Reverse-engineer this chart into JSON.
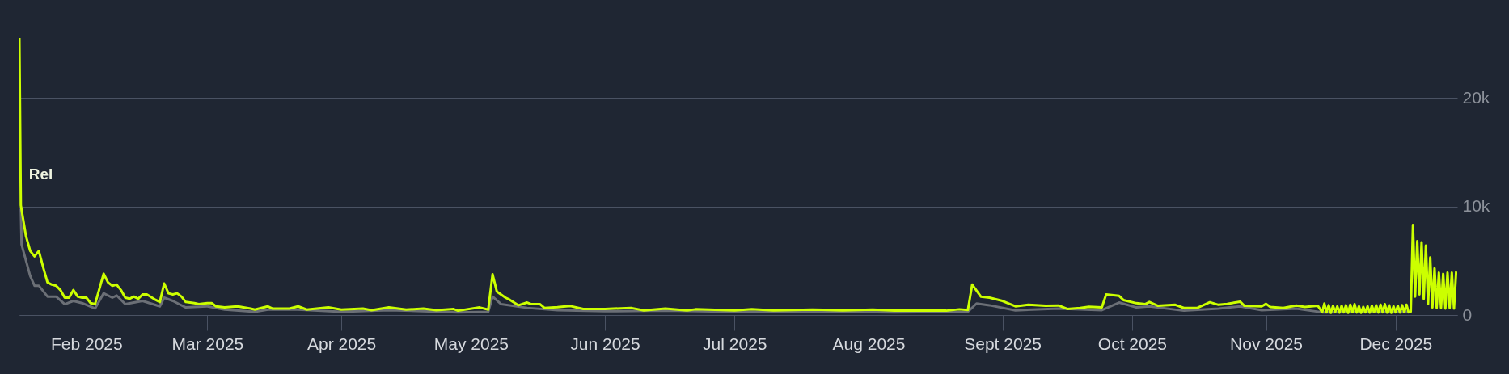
{
  "chart_data": {
    "type": "line",
    "xlim": [
      "2025-01-16T12:00",
      "2025-12-15T06:00"
    ],
    "xticks": [
      {
        "value": "2025-02-01",
        "label": "Feb 2025"
      },
      {
        "value": "2025-03-01",
        "label": "Mar 2025"
      },
      {
        "value": "2025-04-01",
        "label": "Apr 2025"
      },
      {
        "value": "2025-05-01",
        "label": "May 2025"
      },
      {
        "value": "2025-06-01",
        "label": "Jun 2025"
      },
      {
        "value": "2025-07-01",
        "label": "Jul 2025"
      },
      {
        "value": "2025-08-01",
        "label": "Aug 2025"
      },
      {
        "value": "2025-09-01",
        "label": "Sept 2025"
      },
      {
        "value": "2025-10-01",
        "label": "Oct 2025"
      },
      {
        "value": "2025-11-01",
        "label": "Nov 2025"
      },
      {
        "value": "2025-12-01",
        "label": "Dec 2025"
      }
    ],
    "ylim": [
      0,
      29000
    ],
    "yticks": [
      {
        "value": 0,
        "label": "0"
      },
      {
        "value": 10000,
        "label": "10k"
      },
      {
        "value": 20000,
        "label": "20k"
      }
    ],
    "grid": "y",
    "line_style": "solid",
    "annotations": [
      {
        "text": "Rel",
        "x": "2025-01-16T20:00",
        "y": 10100
      }
    ],
    "series": [
      {
        "color": "#6b6f76",
        "x": [
          "2025-01-16T20:00",
          "2025-01-17",
          "2025-01-19",
          "2025-01-20",
          "2025-01-21",
          "2025-01-23",
          "2025-01-25",
          "2025-01-27",
          "2025-01-29",
          "2025-01-31",
          "2025-02-03",
          "2025-02-05",
          "2025-02-07",
          "2025-02-08",
          "2025-02-10",
          "2025-02-14",
          "2025-02-18",
          "2025-02-19",
          "2025-02-21",
          "2025-02-24",
          "2025-03-01",
          "2025-03-05",
          "2025-03-12",
          "2025-03-15",
          "2025-03-22",
          "2025-04-01",
          "2025-04-12",
          "2025-04-28",
          "2025-05-05",
          "2025-05-06",
          "2025-05-08",
          "2025-05-14",
          "2025-05-21",
          "2025-06-01",
          "2025-06-15",
          "2025-07-01",
          "2025-07-19",
          "2025-08-07",
          "2025-08-24",
          "2025-08-26",
          "2025-08-29",
          "2025-09-04",
          "2025-09-14",
          "2025-09-24",
          "2025-09-28",
          "2025-10-02",
          "2025-10-05",
          "2025-10-13",
          "2025-10-21",
          "2025-10-26",
          "2025-10-31",
          "2025-11-08",
          "2025-11-14",
          "2025-11-28",
          "2025-12-04"
        ],
        "values": [
          9800,
          6500,
          3600,
          2700,
          2700,
          1700,
          1700,
          1000,
          1300,
          1100,
          600,
          2000,
          1600,
          1800,
          1000,
          1300,
          800,
          1600,
          1300,
          700,
          800,
          500,
          300,
          500,
          500,
          300,
          450,
          250,
          300,
          1700,
          1000,
          660,
          450,
          350,
          400,
          300,
          330,
          250,
          300,
          1060,
          900,
          430,
          600,
          450,
          1150,
          700,
          800,
          400,
          600,
          800,
          450,
          600,
          250,
          300,
          300
        ]
      },
      {
        "color": "#ccff00",
        "x": [
          "2025-01-16T12:00",
          "2025-01-16T20:00",
          "2025-01-18",
          "2025-01-19",
          "2025-01-20",
          "2025-01-21",
          "2025-01-22",
          "2025-01-23",
          "2025-01-24",
          "2025-01-25",
          "2025-01-26",
          "2025-01-27",
          "2025-01-28",
          "2025-01-29",
          "2025-01-30",
          "2025-01-31",
          "2025-02-01",
          "2025-02-02",
          "2025-02-03",
          "2025-02-05",
          "2025-02-06",
          "2025-02-07",
          "2025-02-08",
          "2025-02-09",
          "2025-02-10",
          "2025-02-11",
          "2025-02-12",
          "2025-02-13",
          "2025-02-14",
          "2025-02-15",
          "2025-02-17",
          "2025-02-18",
          "2025-02-19",
          "2025-02-20",
          "2025-02-21",
          "2025-02-22",
          "2025-02-23",
          "2025-02-24",
          "2025-02-26",
          "2025-02-27",
          "2025-03-01",
          "2025-03-02",
          "2025-03-03",
          "2025-03-05",
          "2025-03-08",
          "2025-03-11",
          "2025-03-12",
          "2025-03-15",
          "2025-03-16",
          "2025-03-20",
          "2025-03-22",
          "2025-03-24",
          "2025-03-29",
          "2025-04-01",
          "2025-04-06",
          "2025-04-08",
          "2025-04-12",
          "2025-04-16",
          "2025-04-20",
          "2025-04-23",
          "2025-04-27",
          "2025-04-28",
          "2025-05-03",
          "2025-05-05",
          "2025-05-06",
          "2025-05-07",
          "2025-05-09",
          "2025-05-10",
          "2025-05-12",
          "2025-05-14",
          "2025-05-15",
          "2025-05-17",
          "2025-05-18",
          "2025-05-21",
          "2025-05-24",
          "2025-05-27",
          "2025-06-01",
          "2025-06-07",
          "2025-06-10",
          "2025-06-15",
          "2025-06-20",
          "2025-06-22",
          "2025-07-01",
          "2025-07-05",
          "2025-07-10",
          "2025-07-19",
          "2025-07-26",
          "2025-08-02",
          "2025-08-07",
          "2025-08-15",
          "2025-08-19",
          "2025-08-22",
          "2025-08-24",
          "2025-08-25",
          "2025-08-27",
          "2025-08-29",
          "2025-09-01",
          "2025-09-04",
          "2025-09-07",
          "2025-09-11",
          "2025-09-14",
          "2025-09-16",
          "2025-09-19",
          "2025-09-21",
          "2025-09-24",
          "2025-09-25",
          "2025-09-28",
          "2025-09-29",
          "2025-10-02",
          "2025-10-04",
          "2025-10-05",
          "2025-10-07",
          "2025-10-11",
          "2025-10-13",
          "2025-10-16",
          "2025-10-19",
          "2025-10-21",
          "2025-10-23",
          "2025-10-26",
          "2025-10-27",
          "2025-10-31",
          "2025-11-01",
          "2025-11-02",
          "2025-11-05",
          "2025-11-08",
          "2025-11-10",
          "2025-11-13",
          "2025-11-14T00:00",
          "2025-11-14T12:00",
          "2025-11-15T00:00",
          "2025-11-15T12:00",
          "2025-11-16T00:00",
          "2025-11-16T12:00",
          "2025-11-17T00:00",
          "2025-11-17T12:00",
          "2025-11-18T00:00",
          "2025-11-18T12:00",
          "2025-11-19T00:00",
          "2025-11-19T12:00",
          "2025-11-20T00:00",
          "2025-11-20T12:00",
          "2025-11-21T00:00",
          "2025-11-21T12:00",
          "2025-11-22T00:00",
          "2025-11-22T12:00",
          "2025-11-23T00:00",
          "2025-11-23T12:00",
          "2025-11-24T00:00",
          "2025-11-24T12:00",
          "2025-11-25T00:00",
          "2025-11-25T12:00",
          "2025-11-26T00:00",
          "2025-11-26T12:00",
          "2025-11-27T00:00",
          "2025-11-27T12:00",
          "2025-11-28T00:00",
          "2025-11-28T12:00",
          "2025-11-29T00:00",
          "2025-11-29T12:00",
          "2025-11-30T00:00",
          "2025-11-30T12:00",
          "2025-12-01T00:00",
          "2025-12-01T12:00",
          "2025-12-02T00:00",
          "2025-12-02T12:00",
          "2025-12-03T00:00",
          "2025-12-03T12:00",
          "2025-12-04T00:00",
          "2025-12-04T12:00",
          "2025-12-05T00:00",
          "2025-12-05T12:00",
          "2025-12-06T00:00",
          "2025-12-06T12:00",
          "2025-12-07T00:00",
          "2025-12-07T12:00",
          "2025-12-08T00:00",
          "2025-12-08T12:00",
          "2025-12-09T00:00",
          "2025-12-09T12:00",
          "2025-12-10T00:00",
          "2025-12-10T12:00",
          "2025-12-11T00:00",
          "2025-12-11T12:00",
          "2025-12-12T00:00",
          "2025-12-12T12:00",
          "2025-12-13T00:00",
          "2025-12-13T12:00",
          "2025-12-14T00:00",
          "2025-12-14T12:00",
          "2025-12-15T00:00"
        ],
        "values": [
          25500,
          10100,
          7300,
          5900,
          5400,
          5900,
          4400,
          3000,
          2800,
          2700,
          2300,
          1600,
          1600,
          2300,
          1700,
          1600,
          1600,
          1100,
          1000,
          3800,
          3000,
          2700,
          2800,
          2300,
          1600,
          1500,
          1700,
          1500,
          1900,
          1900,
          1400,
          1200,
          2900,
          2000,
          1900,
          2000,
          1700,
          1200,
          1100,
          1000,
          1100,
          1100,
          800,
          700,
          800,
          600,
          500,
          800,
          600,
          600,
          800,
          500,
          700,
          500,
          600,
          450,
          700,
          500,
          600,
          450,
          550,
          400,
          700,
          500,
          3750,
          2150,
          1600,
          1400,
          900,
          1150,
          1000,
          1000,
          660,
          730,
          830,
          560,
          560,
          660,
          430,
          600,
          430,
          530,
          430,
          530,
          430,
          500,
          430,
          500,
          400,
          400,
          400,
          530,
          460,
          2800,
          1700,
          1600,
          1300,
          800,
          940,
          850,
          880,
          560,
          650,
          760,
          700,
          1900,
          1760,
          1380,
          1090,
          1000,
          1200,
          850,
          940,
          650,
          650,
          1180,
          940,
          1030,
          1230,
          850,
          800,
          1030,
          740,
          650,
          880,
          740,
          850,
          260,
          1050,
          250,
          900,
          200,
          850,
          280,
          800,
          220,
          850,
          250,
          900,
          200,
          950,
          260,
          1000,
          230,
          800,
          200,
          750,
          250,
          800,
          220,
          850,
          260,
          900,
          230,
          950,
          250,
          1000,
          220,
          900,
          200,
          800,
          250,
          850,
          230,
          900,
          260,
          950,
          250,
          310,
          8300,
          1700,
          6800,
          1900,
          6700,
          1500,
          6400,
          1000,
          5300,
          700,
          4300,
          650,
          3900,
          650,
          3800,
          600,
          3900,
          650,
          3900,
          600,
          4000
        ]
      }
    ]
  }
}
